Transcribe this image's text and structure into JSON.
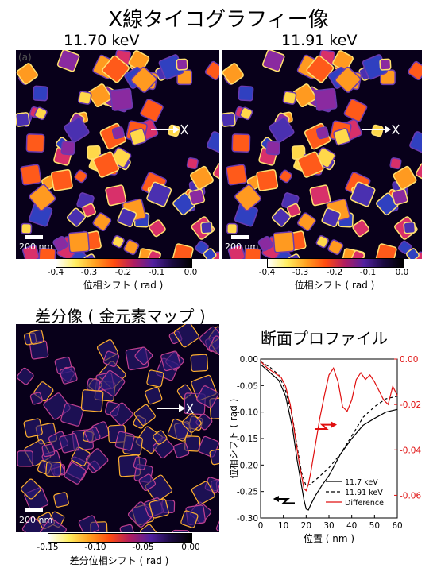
{
  "figure_title": "X線タイコグラフィー像",
  "panel_a_label": "(a)",
  "energy_left": "11.70 keV",
  "energy_right": "11.91 keV",
  "scale_bar_label": "200 nm",
  "colorbar_top": {
    "ticks": [
      "-0.4",
      "-0.3",
      "-0.2",
      "-0.1",
      "0.0"
    ],
    "label": "位相シフト ( rad )"
  },
  "difference_title": "差分像 ( 金元素マップ )",
  "colorbar_bottom": {
    "ticks": [
      "-0.15",
      "-0.10",
      "-0.05",
      "0.00"
    ],
    "label": "差分位相シフト ( rad )"
  },
  "profile_title": "断面プロファイル",
  "colors": {
    "image_background": "#08001a",
    "difference_curve": "#e01010"
  },
  "chart_data": {
    "type": "line",
    "xlabel": "位置 ( nm )",
    "ylabel_left": "位相シフト ( rad )",
    "ylabel_right": "差分位相シフト ( rad )",
    "xlim": [
      0,
      60
    ],
    "ylim_left": [
      -0.3,
      0.0
    ],
    "ylim_right": [
      -0.07,
      0.0
    ],
    "x_ticks": [
      "0",
      "10",
      "20",
      "30",
      "40",
      "50",
      "60"
    ],
    "y_ticks_left": [
      "0.00",
      "-0.05",
      "-0.10",
      "-0.15",
      "-0.20",
      "-0.25",
      "-0.30"
    ],
    "y_ticks_right": [
      "0.00",
      "-0.02",
      "-0.04",
      "-0.06"
    ],
    "legend_position": "bottom-right",
    "series": [
      {
        "name": "11.7 keV",
        "axis": "left",
        "style": "solid",
        "color": "#000000",
        "x": [
          0,
          4,
          8,
          11,
          14,
          16,
          18,
          19,
          20,
          21,
          22,
          24,
          27,
          30,
          35,
          40,
          45,
          50,
          55,
          60
        ],
        "y": [
          -0.01,
          -0.025,
          -0.04,
          -0.07,
          -0.13,
          -0.19,
          -0.24,
          -0.265,
          -0.283,
          -0.285,
          -0.275,
          -0.258,
          -0.238,
          -0.22,
          -0.18,
          -0.15,
          -0.125,
          -0.112,
          -0.1,
          -0.095
        ]
      },
      {
        "name": "11.91 keV",
        "axis": "left",
        "style": "dashed",
        "color": "#000000",
        "x": [
          0,
          4,
          8,
          11,
          14,
          16,
          18,
          20,
          22,
          25,
          30,
          35,
          40,
          45,
          50,
          55,
          60
        ],
        "y": [
          -0.005,
          -0.015,
          -0.03,
          -0.06,
          -0.11,
          -0.165,
          -0.215,
          -0.24,
          -0.236,
          -0.225,
          -0.205,
          -0.18,
          -0.145,
          -0.11,
          -0.09,
          -0.075,
          -0.07
        ]
      },
      {
        "name": "Difference",
        "axis": "right",
        "style": "solid",
        "color": "#e01010",
        "x": [
          0,
          3,
          6,
          9,
          11,
          13,
          15,
          17,
          19,
          20,
          21,
          22,
          23,
          24,
          25,
          26,
          28,
          30,
          32,
          34,
          36,
          38,
          40,
          42,
          44,
          46,
          48,
          50,
          52,
          54,
          56,
          58,
          60
        ],
        "y": [
          -0.001,
          -0.004,
          -0.006,
          -0.008,
          -0.012,
          -0.02,
          -0.033,
          -0.046,
          -0.057,
          -0.058,
          -0.055,
          -0.05,
          -0.044,
          -0.038,
          -0.032,
          -0.026,
          -0.016,
          -0.007,
          -0.004,
          -0.01,
          -0.021,
          -0.023,
          -0.018,
          -0.009,
          -0.006,
          -0.009,
          -0.007,
          -0.01,
          -0.014,
          -0.018,
          -0.02,
          -0.012,
          -0.016
        ]
      }
    ]
  }
}
